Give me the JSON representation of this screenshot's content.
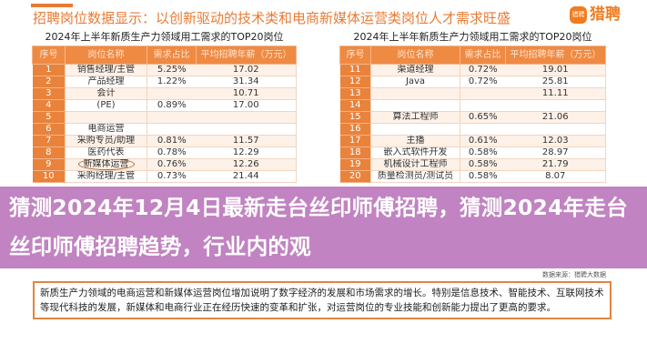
{
  "header": {
    "title": "招聘岗位数据显示：以创新驱动的技术类和电商新媒体运营类岗位人才需求旺盛",
    "logo_text": "猎聘",
    "logo_mark": "猎聘",
    "accent": "#e87b35"
  },
  "tables": [
    {
      "title": "2024年上半年新质生产力领域用工需求的TOP20岗位",
      "columns": [
        "序号",
        "岗位名称",
        "需求占比",
        "平均招聘年薪（万元）"
      ],
      "rows": [
        [
          "1",
          "销售经理/主管",
          "5.25%",
          "17.02"
        ],
        [
          "2",
          "产品经理",
          "1.22%",
          "31.34"
        ],
        [
          "3",
          "会计",
          "",
          "10.71"
        ],
        [
          "4",
          "(PE)",
          "0.89%",
          "17.00"
        ],
        [
          "5",
          "",
          "",
          ""
        ],
        [
          "6",
          "电商运营",
          "",
          ""
        ],
        [
          "7",
          "采购专员/助理",
          "0.81%",
          "11.57"
        ],
        [
          "8",
          "医药代表",
          "0.78%",
          "12.29"
        ],
        [
          "9",
          "新媒体运营",
          "0.76%",
          "12.26"
        ],
        [
          "10",
          "采购经理/主管",
          "0.73%",
          "21.44"
        ]
      ]
    },
    {
      "title": "2024年上半年新质生产力领域用工需求的TOP20岗位",
      "columns": [
        "序号",
        "岗位名称",
        "需求占比",
        "平均招聘年薪（万元）"
      ],
      "rows": [
        [
          "11",
          "渠道经理",
          "0.72%",
          "19.01"
        ],
        [
          "12",
          "Java",
          "0.72%",
          "25.81"
        ],
        [
          "13",
          "",
          "",
          "11.11"
        ],
        [
          "14",
          "",
          "",
          ""
        ],
        [
          "15",
          "算法工程师",
          "0.65%",
          "21.06"
        ],
        [
          "16",
          "",
          "",
          ""
        ],
        [
          "17",
          "主播",
          "0.61%",
          "12.03"
        ],
        [
          "18",
          "嵌入式软件开发",
          "0.58%",
          "28.97"
        ],
        [
          "19",
          "机械设计工程师",
          "0.58%",
          "21.79"
        ],
        [
          "20",
          "质量检测员/测试员",
          "0.58%",
          "8.07"
        ]
      ]
    }
  ],
  "source": "数据来源：猎聘大数据",
  "note": "新质生产力领域的电商运营和新媒体运营岗位增加说明了数字经济的发展和市场需求的增长。特别是信息技术、智能技术、互联网技术等现代科技的发展，新媒体和电商行业正在经历快速的变革和扩张，对运营岗位的专业技能和创新能力提出了更高的要求。",
  "overlay_title": "猜测2024年12月4日最新走台丝印师傅招聘，猜测2024年走台丝印师傅招聘趋势，行业内的观"
}
